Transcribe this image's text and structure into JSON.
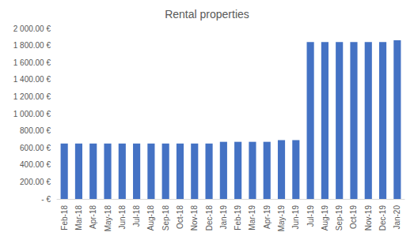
{
  "chart_data": {
    "type": "bar",
    "title": "Rental properties",
    "categories": [
      "Feb-18",
      "Mar-18",
      "Apr-18",
      "May-18",
      "Jun-18",
      "Jul-18",
      "Aug-18",
      "Sep-18",
      "Oct-18",
      "Nov-18",
      "Dec-18",
      "Jan-19",
      "Feb-19",
      "Mar-19",
      "Apr-19",
      "May-19",
      "Jun-19",
      "Jul-19",
      "Aug-19",
      "Sep-19",
      "Oct-19",
      "Nov-19",
      "Dec-19",
      "Jan-20"
    ],
    "values": [
      650,
      650,
      650,
      650,
      650,
      650,
      650,
      650,
      650,
      650,
      650,
      670,
      670,
      670,
      670,
      690,
      690,
      1840,
      1840,
      1840,
      1840,
      1840,
      1840,
      1860
    ],
    "color": "#4472c4",
    "ylim": [
      0,
      2000
    ],
    "yticks": [
      {
        "value": 0,
        "label": "- €"
      },
      {
        "value": 200,
        "label": "200.00 €"
      },
      {
        "value": 400,
        "label": "400.00 €"
      },
      {
        "value": 600,
        "label": "600.00 €"
      },
      {
        "value": 800,
        "label": "800.00 €"
      },
      {
        "value": 1000,
        "label": "1 000.00 €"
      },
      {
        "value": 1200,
        "label": "1 200.00 €"
      },
      {
        "value": 1400,
        "label": "1 400.00 €"
      },
      {
        "value": 1600,
        "label": "1 600.00 €"
      },
      {
        "value": 1800,
        "label": "1 800.00 €"
      },
      {
        "value": 2000,
        "label": "2 000.00 €"
      }
    ],
    "grid": false
  }
}
